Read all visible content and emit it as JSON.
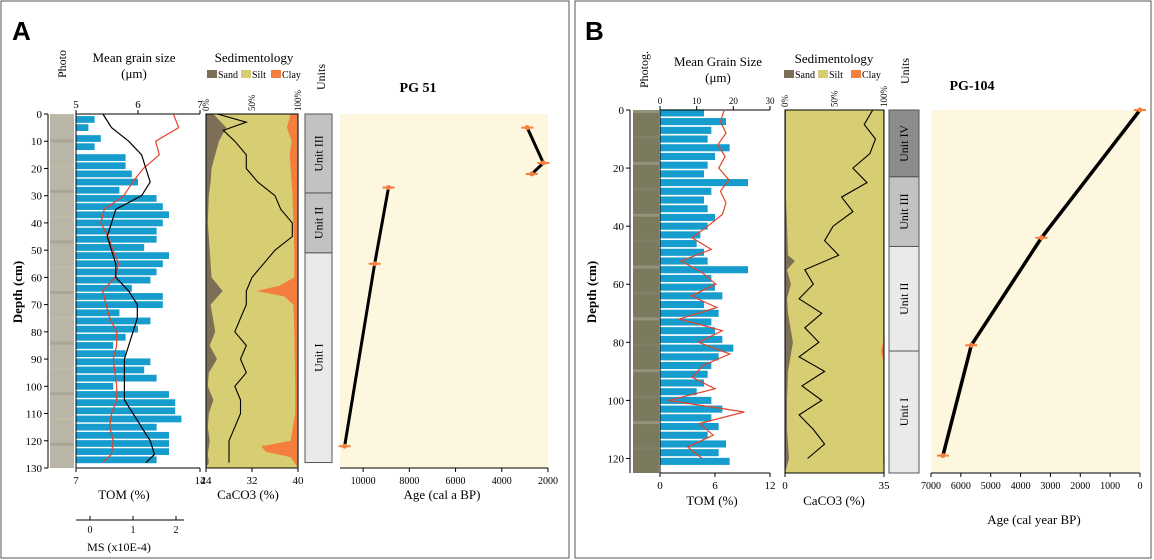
{
  "colors": {
    "grain_bar": "#169ccd",
    "tom": "#e2432b",
    "ms": "#000000",
    "sand": "#7c6e57",
    "silt": "#d7cd72",
    "clay": "#f47e3d",
    "age_bg": "#fdf7df",
    "age_marker": "#f47e3d",
    "units_dark": "#8c8c8c",
    "units_mid": "#c2c2c2",
    "units_light": "#eaeaea",
    "grain_title_A": "#1f3d6e",
    "grain_title_B": "#1aa5d8",
    "tom_label": "#e2432b"
  },
  "panelA": {
    "letter": "A",
    "photo_label": "Photo",
    "grain_title": "Mean grain size",
    "grain_unit": "(μm)",
    "sed_title": "Sedimentology",
    "units_title": "Units",
    "core_title": "PG 51",
    "depth_label": "Depth (cm)",
    "tom_label": "TOM (%)",
    "ms_label": "MS (x10E-4)",
    "caco3_label": "CaCO3 (%)",
    "age_label": "Age (cal a BP)",
    "legend": [
      "Sand",
      "Silt",
      "Clay"
    ],
    "unit_names": [
      "Unit III",
      "Unit II",
      "Unit I"
    ]
  },
  "panelB": {
    "letter": "B",
    "photo_label": "Photog.",
    "grain_title": "Mean Grain Size",
    "grain_unit": "(μm)",
    "sed_title": "Sedimentology",
    "units_title": "Units",
    "core_title": "PG-104",
    "depth_label": "Depth (cm)",
    "tom_label": "TOM (%)",
    "caco3_label": "CaCO3 (%)",
    "age_label": "Age (cal year BP)",
    "legend": [
      "Sand",
      "Silt",
      "Clay"
    ],
    "unit_names": [
      "Unit IV",
      "Unit III",
      "Unit II",
      "Unit I"
    ]
  },
  "chart_data": [
    {
      "panel": "A",
      "type": "line",
      "depth_axis": {
        "label": "Depth (cm)",
        "range": [
          0,
          130
        ],
        "ticks": [
          0,
          10,
          20,
          30,
          40,
          50,
          60,
          70,
          80,
          90,
          100,
          110,
          120,
          130
        ]
      },
      "grain_axis": {
        "label": "Mean grain size (μm)",
        "range": [
          5,
          7
        ],
        "ticks": [
          5,
          6,
          7
        ]
      },
      "tom_axis": {
        "label": "TOM (%)",
        "range": [
          7,
          14
        ],
        "ticks": [
          7,
          14
        ]
      },
      "ms_axis": {
        "label": "MS (x10E-4)",
        "range": [
          0,
          2
        ],
        "ticks": [
          0,
          1,
          2
        ]
      },
      "caco3_axis": {
        "label": "CaCO3 (%)",
        "range": [
          24,
          40
        ],
        "ticks": [
          24,
          32,
          40
        ]
      },
      "sed_axis_ticks": [
        "0%",
        "50%",
        "100%"
      ],
      "age_axis": {
        "label": "Age (cal a BP)",
        "range": [
          11000,
          2000
        ],
        "ticks": [
          10000,
          8000,
          6000,
          4000,
          2000
        ]
      },
      "units": [
        {
          "name": "Unit III",
          "top": 0,
          "bottom": 29
        },
        {
          "name": "Unit II",
          "top": 29,
          "bottom": 51
        },
        {
          "name": "Unit I",
          "top": 51,
          "bottom": 128
        }
      ],
      "age_model": [
        {
          "depth": 5,
          "age": 2900
        },
        {
          "depth": 18,
          "age": 2200
        },
        {
          "depth": 22,
          "age": 2700
        },
        {
          "depth": 27,
          "age": 8900
        },
        {
          "depth": 55,
          "age": 9500
        },
        {
          "depth": 122,
          "age": 10800
        }
      ],
      "grain_size": {
        "depth": [
          2,
          5,
          9,
          12,
          16,
          19,
          22,
          25,
          28,
          31,
          34,
          37,
          40,
          43,
          46,
          49,
          52,
          55,
          58,
          61,
          64,
          67,
          70,
          73,
          76,
          79,
          82,
          85,
          88,
          91,
          94,
          97,
          100,
          103,
          106,
          109,
          112,
          115,
          118,
          121,
          124,
          127
        ],
        "value": [
          5.3,
          5.2,
          5.4,
          5.3,
          5.8,
          5.8,
          5.9,
          6.0,
          5.7,
          6.3,
          6.4,
          6.5,
          6.4,
          6.3,
          6.3,
          6.1,
          6.5,
          6.4,
          6.3,
          6.2,
          5.9,
          6.4,
          6.4,
          5.7,
          6.2,
          6.0,
          5.8,
          5.6,
          5.8,
          6.2,
          6.1,
          6.3,
          5.6,
          6.5,
          6.6,
          6.6,
          6.7,
          6.3,
          6.5,
          6.5,
          6.5,
          6.3
        ]
      },
      "tom": {
        "depth": [
          0,
          5,
          10,
          15,
          20,
          25,
          30,
          35,
          40,
          45,
          50,
          55,
          60,
          65,
          70,
          75,
          80,
          85,
          90,
          95,
          100,
          105,
          110,
          115,
          120,
          125,
          128
        ],
        "value": [
          12.5,
          12.8,
          11.5,
          11.7,
          10.8,
          10.2,
          9.7,
          8.6,
          8.4,
          8.8,
          9.1,
          9.4,
          9.2,
          8.5,
          8.7,
          8.9,
          9.3,
          9.3,
          9.1,
          9.2,
          9.3,
          9.3,
          9.0,
          8.9,
          9.1,
          9.0,
          8.5
        ]
      },
      "ms": {
        "depth": [
          0,
          5,
          10,
          15,
          20,
          25,
          30,
          35,
          40,
          45,
          50,
          55,
          60,
          65,
          70,
          75,
          80,
          85,
          90,
          95,
          100,
          105,
          110,
          115,
          120,
          125,
          128
        ],
        "value": [
          0.3,
          0.5,
          0.9,
          1.2,
          1.3,
          1.4,
          1.2,
          0.6,
          0.5,
          0.4,
          0.5,
          0.6,
          0.6,
          0.9,
          1.1,
          1.1,
          1.0,
          0.9,
          0.8,
          0.8,
          0.8,
          0.8,
          1.0,
          1.2,
          1.4,
          1.5,
          1.3
        ]
      },
      "caco3": {
        "depth": [
          0,
          3,
          6,
          10,
          15,
          20,
          25,
          30,
          35,
          40,
          45,
          50,
          55,
          60,
          65,
          70,
          75,
          80,
          85,
          90,
          95,
          100,
          105,
          110,
          115,
          120,
          125,
          128
        ],
        "value": [
          26,
          31,
          27,
          29,
          31,
          31,
          33,
          36,
          37,
          39,
          39,
          36,
          34,
          32,
          31,
          31,
          30,
          29,
          31,
          30,
          31,
          29,
          30,
          30,
          29,
          28,
          28,
          28
        ]
      },
      "sand": {
        "depth": [
          0,
          5,
          10,
          15,
          20,
          25,
          30,
          40,
          50,
          60,
          65,
          70,
          80,
          85,
          90,
          95,
          100,
          105,
          110,
          115,
          120,
          125,
          128
        ],
        "value": [
          8,
          22,
          14,
          10,
          6,
          5,
          3,
          2,
          4,
          6,
          18,
          5,
          10,
          4,
          12,
          3,
          2,
          8,
          3,
          2,
          4,
          2,
          3
        ]
      },
      "clay": {
        "depth": [
          0,
          5,
          10,
          15,
          20,
          25,
          30,
          40,
          50,
          60,
          63,
          65,
          67,
          70,
          80,
          100,
          110,
          120,
          122,
          124,
          126,
          128
        ],
        "value": [
          8,
          12,
          7,
          9,
          8,
          7,
          6,
          5,
          4,
          4,
          20,
          45,
          15,
          5,
          4,
          3,
          3,
          8,
          40,
          35,
          8,
          4
        ]
      }
    },
    {
      "panel": "B",
      "type": "line",
      "depth_axis": {
        "label": "Depth (cm)",
        "range": [
          0,
          125
        ],
        "ticks": [
          0,
          20,
          40,
          60,
          80,
          100,
          120
        ]
      },
      "grain_axis": {
        "label": "Mean Grain Size (μm)",
        "range": [
          0,
          30
        ],
        "ticks": [
          0,
          10,
          20,
          30
        ]
      },
      "tom_axis": {
        "label": "TOM (%)",
        "range": [
          0,
          12
        ],
        "ticks": [
          0,
          6,
          12
        ]
      },
      "caco3_axis": {
        "label": "CaCO3 (%)",
        "range": [
          0,
          35
        ],
        "ticks": [
          0,
          35
        ]
      },
      "sed_axis_ticks": [
        "0%",
        "50%",
        "100%"
      ],
      "age_axis": {
        "label": "Age (cal year BP)",
        "range": [
          7000,
          0
        ],
        "ticks": [
          7000,
          6000,
          5000,
          4000,
          3000,
          2000,
          1000,
          0
        ]
      },
      "units": [
        {
          "name": "Unit IV",
          "top": 0,
          "bottom": 23
        },
        {
          "name": "Unit III",
          "top": 23,
          "bottom": 47
        },
        {
          "name": "Unit II",
          "top": 47,
          "bottom": 83
        },
        {
          "name": "Unit I",
          "top": 83,
          "bottom": 125
        }
      ],
      "age_model": [
        {
          "depth": 0,
          "age": 0
        },
        {
          "depth": 44,
          "age": 3300
        },
        {
          "depth": 81,
          "age": 5650
        },
        {
          "depth": 119,
          "age": 6600
        }
      ],
      "grain_size": {
        "depth": [
          1,
          4,
          7,
          10,
          13,
          16,
          19,
          22,
          25,
          28,
          31,
          34,
          37,
          40,
          43,
          46,
          49,
          52,
          55,
          58,
          61,
          64,
          67,
          70,
          73,
          76,
          79,
          82,
          85,
          88,
          91,
          94,
          97,
          100,
          103,
          106,
          109,
          112,
          115,
          118,
          121
        ],
        "value": [
          12,
          18,
          14,
          13,
          19,
          15,
          13,
          12,
          24,
          14,
          12,
          13,
          15,
          13,
          11,
          10,
          12,
          13,
          24,
          14,
          15,
          17,
          12,
          16,
          14,
          15,
          17,
          20,
          16,
          14,
          13,
          12,
          10,
          14,
          17,
          14,
          16,
          13,
          18,
          16,
          19
        ]
      },
      "tom": {
        "depth": [
          0,
          4,
          8,
          12,
          16,
          20,
          24,
          28,
          32,
          36,
          40,
          44,
          48,
          52,
          56,
          60,
          64,
          68,
          72,
          76,
          80,
          84,
          88,
          92,
          96,
          100,
          104,
          108,
          112,
          116,
          120
        ],
        "value": [
          7,
          6.6,
          7.2,
          6.3,
          7.1,
          6.4,
          7.5,
          6.6,
          7.2,
          6.8,
          5.2,
          3.5,
          5.6,
          2.3,
          4.6,
          6.1,
          3.4,
          6.2,
          2.1,
          6.8,
          4.2,
          7.6,
          4.7,
          3.5,
          6.0,
          0.9,
          9.2,
          4.3,
          5.8,
          3.0,
          4.6
        ]
      },
      "caco3": {
        "depth": [
          0,
          5,
          10,
          15,
          20,
          25,
          30,
          35,
          40,
          45,
          50,
          55,
          60,
          65,
          70,
          75,
          80,
          85,
          90,
          95,
          100,
          105,
          110,
          115,
          120
        ],
        "value": [
          31,
          28,
          32,
          30,
          24,
          29,
          20,
          24,
          17,
          14,
          19,
          7,
          10,
          5,
          13,
          7,
          12,
          5,
          14,
          6,
          13,
          5,
          10,
          14,
          8
        ]
      },
      "sand": {
        "depth": [
          0,
          10,
          20,
          30,
          40,
          50,
          52,
          55,
          60,
          65,
          70,
          80,
          90,
          100,
          110,
          120
        ],
        "value": [
          1,
          1,
          1,
          1,
          2,
          3,
          10,
          2,
          6,
          2,
          3,
          8,
          3,
          2,
          2,
          4
        ]
      },
      "clay": {
        "depth": [
          0,
          20,
          40,
          60,
          80,
          83,
          86,
          100,
          120
        ],
        "value": [
          1,
          1,
          1,
          1,
          1,
          3,
          1,
          1,
          1
        ]
      }
    }
  ]
}
